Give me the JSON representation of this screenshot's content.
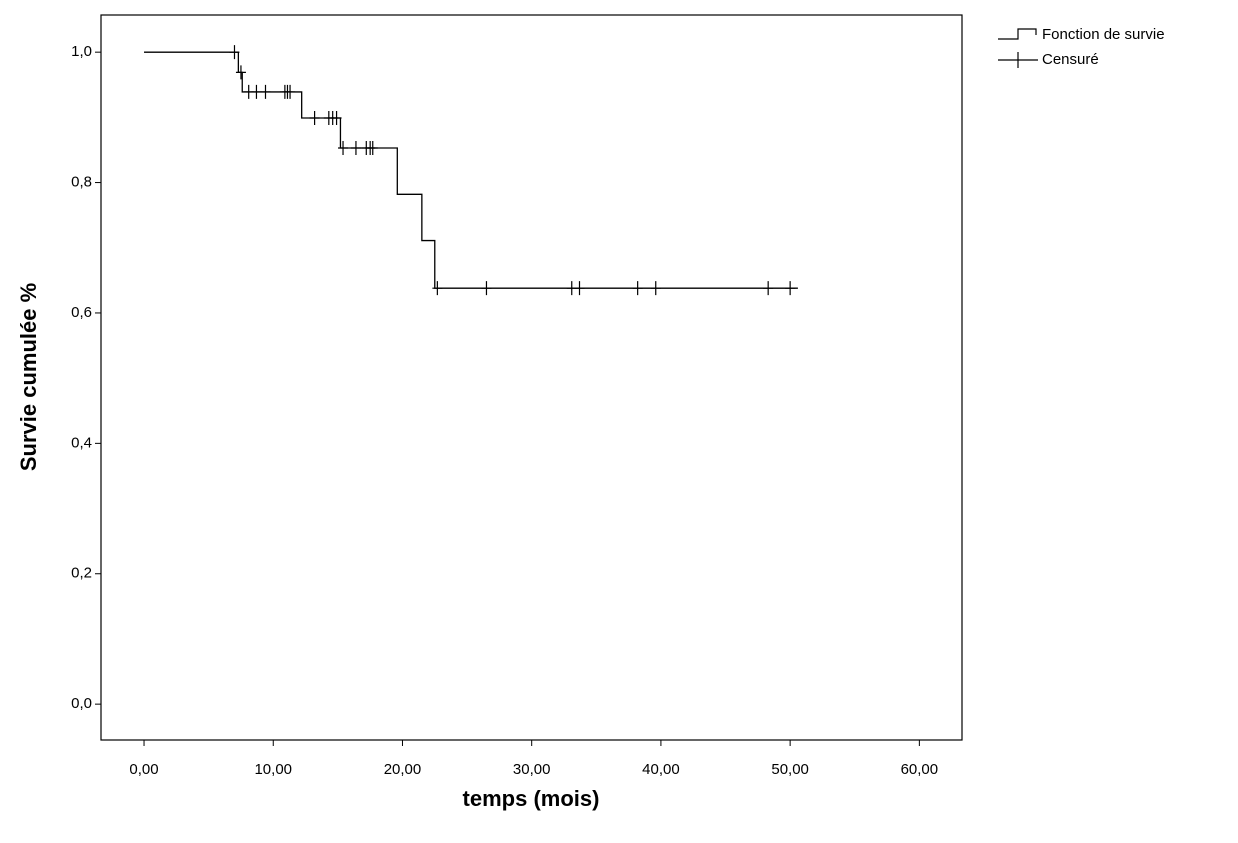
{
  "chart_data": {
    "type": "survival",
    "x_label": "temps (mois)",
    "y_label": "Survie cumulée %",
    "xlim": [
      -3.33,
      63.3
    ],
    "ylim": [
      -0.055,
      1.057
    ],
    "xticks": [
      {
        "value": 0,
        "label": "0,00"
      },
      {
        "value": 10,
        "label": "10,00"
      },
      {
        "value": 20,
        "label": "20,00"
      },
      {
        "value": 30,
        "label": "30,00"
      },
      {
        "value": 40,
        "label": "40,00"
      },
      {
        "value": 50,
        "label": "50,00"
      },
      {
        "value": 60,
        "label": "60,00"
      }
    ],
    "yticks": [
      {
        "value": 0,
        "label": "0,0"
      },
      {
        "value": 0.2,
        "label": "0,2"
      },
      {
        "value": 0.4,
        "label": "0,4"
      },
      {
        "value": 0.6,
        "label": "0,6"
      },
      {
        "value": 0.8,
        "label": "0,8"
      },
      {
        "value": 1,
        "label": "1,0"
      }
    ],
    "series": [
      {
        "name": "Fonction de survie",
        "color": "#000000",
        "style": "step",
        "x": [
          0,
          7.3,
          7.6,
          12.2,
          15.2,
          19.6,
          21.5,
          22.5,
          50.6
        ],
        "values": [
          1,
          0.969,
          0.939,
          0.899,
          0.853,
          0.782,
          0.711,
          0.638,
          0.638
        ]
      },
      {
        "name": "Censuré",
        "color": "#000000",
        "style": "cross",
        "x": [
          7.0,
          7.5,
          8.1,
          8.7,
          9.4,
          10.9,
          11.1,
          11.3,
          13.2,
          14.3,
          14.6,
          14.9,
          15.4,
          16.4,
          17.2,
          17.5,
          17.7,
          22.7,
          26.5,
          33.1,
          33.7,
          38.2,
          39.6,
          48.3,
          50.0
        ],
        "values": [
          1,
          0.969,
          0.939,
          0.939,
          0.939,
          0.939,
          0.939,
          0.939,
          0.899,
          0.899,
          0.899,
          0.899,
          0.853,
          0.853,
          0.853,
          0.853,
          0.853,
          0.638,
          0.638,
          0.638,
          0.638,
          0.638,
          0.638,
          0.638,
          0.638
        ]
      }
    ]
  }
}
